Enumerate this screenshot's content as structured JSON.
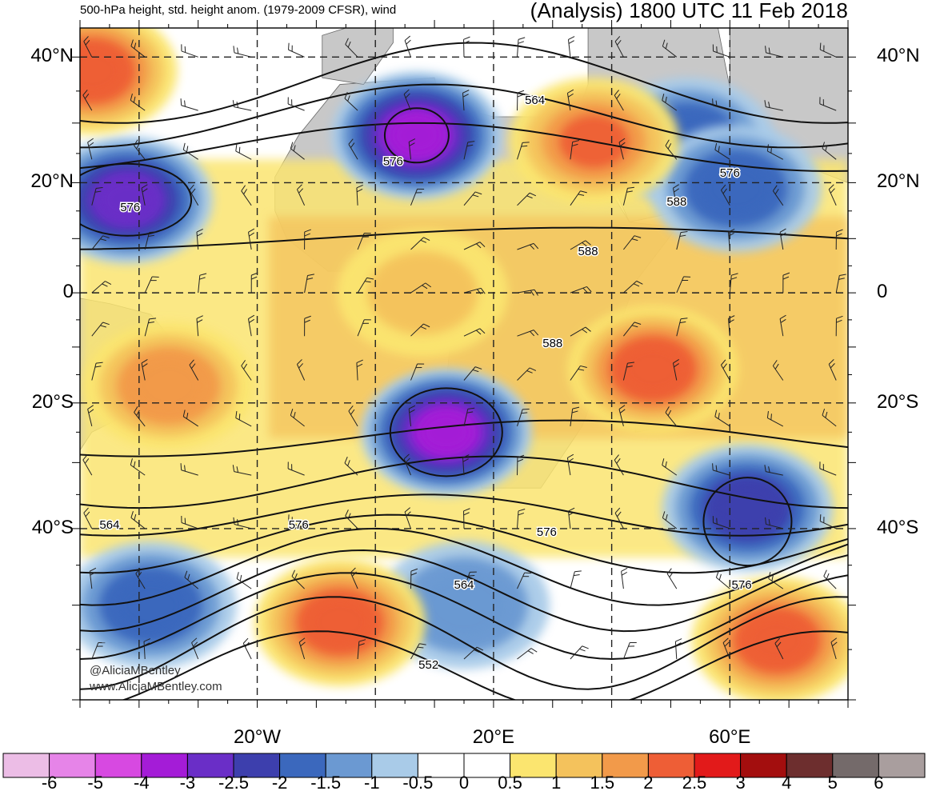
{
  "header": {
    "left_title": "500-hPa height, std. height anom. (1979-2009 CFSR), wind",
    "right_title": "(Analysis) 1800 UTC 11 Feb 2018"
  },
  "map": {
    "lat_labels": [
      "40°N",
      "20°N",
      "0",
      "20°S",
      "40°S"
    ],
    "lat_values": [
      40,
      20,
      0,
      -20,
      -40
    ],
    "lon_labels": [
      "20°W",
      "20°E",
      "60°E"
    ],
    "lon_values": [
      -20,
      20,
      60
    ],
    "lon_range": [
      -50,
      80
    ],
    "lat_range": [
      -60,
      44
    ],
    "contour_labels": [
      {
        "text": "576",
        "lon": -41.5,
        "lat": 15
      },
      {
        "text": "576",
        "lon": 3,
        "lat": 23
      },
      {
        "text": "564",
        "lon": 27,
        "lat": 33
      },
      {
        "text": "576",
        "lon": 60,
        "lat": 21
      },
      {
        "text": "588",
        "lon": 51,
        "lat": 16
      },
      {
        "text": "588",
        "lon": 36,
        "lat": 7
      },
      {
        "text": "588",
        "lon": 30,
        "lat": -10
      },
      {
        "text": "564",
        "lon": -45,
        "lat": -40
      },
      {
        "text": "576",
        "lon": -13,
        "lat": -40
      },
      {
        "text": "576",
        "lon": 29,
        "lat": -41
      },
      {
        "text": "564",
        "lon": 15,
        "lat": -48
      },
      {
        "text": "576",
        "lon": 62,
        "lat": -48
      },
      {
        "text": "552",
        "lon": 9,
        "lat": -57
      }
    ],
    "anomaly_centers": [
      {
        "lon": 7,
        "lat": 28,
        "value": -3.5
      },
      {
        "lon": -42,
        "lat": 17,
        "value": -3.0
      },
      {
        "lon": 53,
        "lat": 27,
        "value": -2.0
      },
      {
        "lon": 61,
        "lat": 19,
        "value": -2.0
      },
      {
        "lon": 12,
        "lat": -25,
        "value": -3.5
      },
      {
        "lon": 63,
        "lat": -37,
        "value": -2.2
      },
      {
        "lon": 15,
        "lat": -50,
        "value": -1.2
      },
      {
        "lon": -38,
        "lat": -50,
        "value": -2.0
      },
      {
        "lon": -48,
        "lat": 38,
        "value": 2.2
      },
      {
        "lon": 37,
        "lat": 27,
        "value": 2.0
      },
      {
        "lon": 47,
        "lat": -14,
        "value": 2.1
      },
      {
        "lon": -6,
        "lat": -52,
        "value": 2.4
      },
      {
        "lon": 68,
        "lat": -54,
        "value": 2.3
      },
      {
        "lon": -35,
        "lat": -17,
        "value": 1.8
      },
      {
        "lon": 8,
        "lat": 0,
        "value": 1.0
      }
    ]
  },
  "colorbar": {
    "labels": [
      "-6",
      "-5",
      "-4",
      "-3",
      "-2.5",
      "-2",
      "-1.5",
      "-1",
      "-0.5",
      "0",
      "0.5",
      "1",
      "1.5",
      "2",
      "2.5",
      "3",
      "4",
      "5",
      "6"
    ],
    "colors": [
      "#ecbde6",
      "#e684e8",
      "#d749e1",
      "#a41cd7",
      "#6a2ec7",
      "#3d3fad",
      "#3b68bd",
      "#6b99d2",
      "#a9cbe8",
      "#ffffff",
      "#ffffff",
      "#fbe56f",
      "#f4c25c",
      "#f29a4a",
      "#ee5e36",
      "#e21a1a",
      "#a30e0e",
      "#6d2e2e",
      "#746a6a",
      "#a99e9e"
    ]
  },
  "credit": {
    "line1": "@AliciaMBentley",
    "line2": "www.AliciaMBentley.com"
  }
}
